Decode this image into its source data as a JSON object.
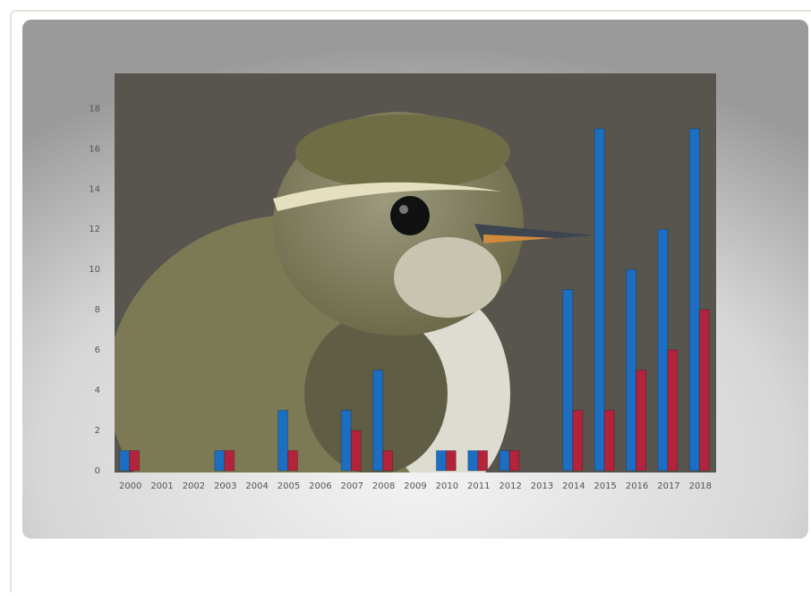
{
  "chart_data": {
    "type": "bar",
    "categories": [
      "2000",
      "2001",
      "2002",
      "2003",
      "2004",
      "2005",
      "2006",
      "2007",
      "2008",
      "2009",
      "2010",
      "2011",
      "2012",
      "2013",
      "2014",
      "2015",
      "2016",
      "2017",
      "2018"
    ],
    "series": [
      {
        "color": "#1b6ec2",
        "values": [
          1,
          0,
          0,
          1,
          0,
          3,
          0,
          3,
          5,
          0,
          1,
          1,
          1,
          0,
          9,
          17,
          10,
          12,
          17
        ]
      },
      {
        "color": "#b3233a",
        "values": [
          1,
          0,
          0,
          1,
          0,
          1,
          0,
          2,
          1,
          0,
          1,
          1,
          1,
          0,
          3,
          3,
          5,
          6,
          8
        ]
      }
    ],
    "ylim": [
      0,
      19.75
    ],
    "yticks": [
      0,
      2,
      4,
      6,
      8,
      10,
      12,
      14,
      16,
      18
    ],
    "grid": false
  }
}
